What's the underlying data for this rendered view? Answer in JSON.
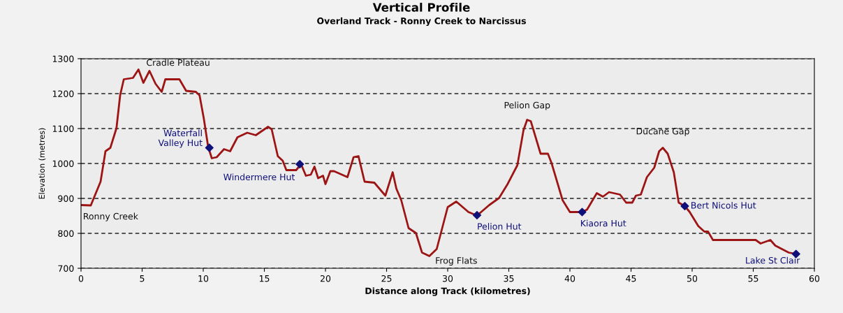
{
  "chart_data": {
    "type": "line",
    "title": "Vertical Profile",
    "subtitle": "Overland Track - Ronny Creek to Narcissus",
    "xlabel": "Distance along Track (kilometres)",
    "ylabel": "Elevation (metres)",
    "xlim": [
      0,
      60
    ],
    "xticks": [
      0,
      5,
      10,
      15,
      20,
      25,
      30,
      35,
      40,
      45,
      50,
      55,
      60
    ],
    "ylim": [
      700,
      1300
    ],
    "yticks": [
      700,
      800,
      900,
      1000,
      1100,
      1200,
      1300
    ],
    "grid": "y",
    "legend": false,
    "series": [
      {
        "color": "#9c1414",
        "marker": "none",
        "line_style": "solid",
        "x": [
          0,
          0.8,
          1.6,
          2.0,
          2.4,
          2.9,
          3.2,
          3.5,
          4.25,
          4.7,
          5.1,
          5.6,
          6.1,
          6.6,
          6.9,
          7.5,
          8.05,
          8.6,
          9.4,
          9.7,
          10.05,
          10.4,
          10.7,
          11.1,
          11.7,
          12.2,
          12.8,
          13.6,
          14.3,
          15.3,
          15.6,
          16.1,
          16.5,
          16.8,
          17.6,
          18.0,
          18.4,
          18.8,
          19.1,
          19.4,
          19.8,
          20.0,
          20.4,
          20.7,
          21.8,
          22.3,
          22.7,
          23.2,
          24.0,
          24.9,
          25.5,
          25.8,
          26.2,
          26.8,
          27.4,
          27.9,
          28.5,
          29.1,
          30.0,
          30.7,
          31.7,
          32.4,
          33.4,
          34.2,
          34.9,
          35.7,
          36.2,
          36.5,
          36.8,
          37.6,
          38.2,
          38.5,
          39.4,
          40.0,
          41.0,
          41.4,
          42.2,
          42.7,
          43.2,
          44.1,
          44.6,
          45.1,
          45.4,
          45.8,
          46.3,
          46.9,
          47.3,
          47.6,
          48.0,
          48.5,
          48.9,
          49.4,
          49.8,
          50.5,
          51.0,
          51.3,
          51.7,
          55.2,
          55.6,
          56.4,
          56.8,
          57.9,
          58.5
        ],
        "values": [
          881,
          880,
          948,
          1035,
          1045,
          1101,
          1195,
          1241,
          1245,
          1269,
          1231,
          1265,
          1228,
          1205,
          1241,
          1241,
          1241,
          1208,
          1205,
          1195,
          1128,
          1048,
          1015,
          1018,
          1041,
          1035,
          1075,
          1088,
          1081,
          1105,
          1098,
          1021,
          1008,
          981,
          981,
          998,
          965,
          968,
          991,
          958,
          965,
          941,
          978,
          978,
          961,
          1018,
          1021,
          948,
          945,
          908,
          975,
          928,
          895,
          815,
          801,
          745,
          735,
          755,
          875,
          891,
          861,
          851,
          881,
          901,
          941,
          995,
          1095,
          1125,
          1121,
          1028,
          1028,
          1001,
          895,
          861,
          861,
          868,
          915,
          905,
          918,
          911,
          888,
          888,
          908,
          911,
          961,
          988,
          1035,
          1045,
          1028,
          975,
          888,
          878,
          861,
          821,
          805,
          805,
          781,
          781,
          771,
          781,
          765,
          745,
          741
        ]
      },
      {
        "type": "scatter",
        "color": "#10107a",
        "marker": "diamond",
        "x": [
          10.5,
          17.9,
          32.4,
          41.0,
          49.4,
          58.5
        ],
        "values": [
          1045,
          998,
          852,
          861,
          878,
          741
        ],
        "value_labels": [
          "Waterfall\nValley Hut",
          "Windermere Hut",
          "Pelion Hut",
          "Kiaora Hut",
          "Bert Nicols Hut",
          "Lake St Clair"
        ]
      }
    ],
    "annotations": [
      {
        "text": "Ronny Creek",
        "x": 0,
        "y": 881
      },
      {
        "text": "Cradle Plateau",
        "x": 4.7,
        "y": 1269
      },
      {
        "text": "Frog Flats",
        "x": 28.5,
        "y": 735
      },
      {
        "text": "Pelion Gap",
        "x": 36.5,
        "y": 1125
      },
      {
        "text": "Ducane Gap",
        "x": 47.6,
        "y": 1045
      }
    ]
  }
}
